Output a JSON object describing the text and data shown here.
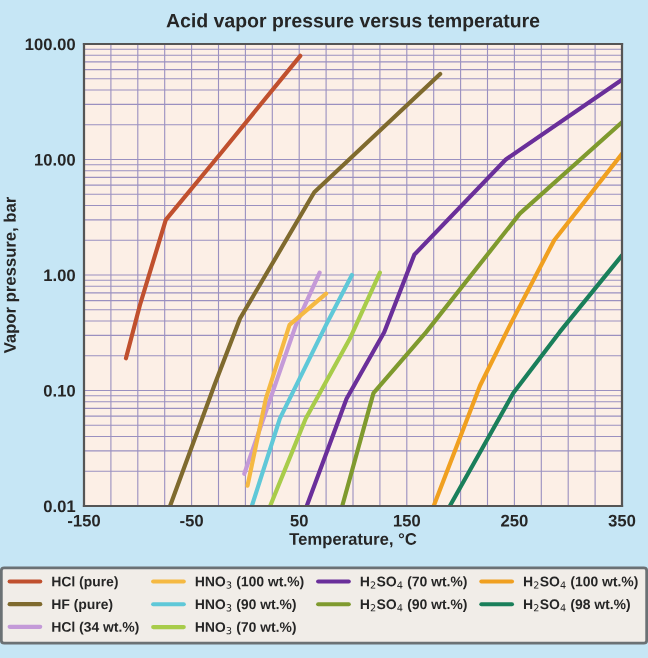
{
  "chart_data": {
    "type": "line",
    "title": "Acid vapor pressure versus temperature",
    "xlabel": "Temperature, °C",
    "ylabel": "Vapor pressure, bar",
    "log": "y",
    "grid": true,
    "legend": "bottom",
    "line_style": "solid",
    "marker": "none",
    "xlim": [
      -150,
      350
    ],
    "xticks": [
      -150,
      {
        "value": -125,
        "label": null
      },
      {
        "value": -100,
        "label": null
      },
      {
        "value": -75,
        "label": null
      },
      -50,
      {
        "value": -25,
        "label": null
      },
      {
        "value": 0,
        "label": null
      },
      {
        "value": 25,
        "label": null
      },
      50,
      {
        "value": 75,
        "label": null
      },
      {
        "value": 100,
        "label": null
      },
      {
        "value": 125,
        "label": null
      },
      150,
      {
        "value": 175,
        "label": null
      },
      {
        "value": 200,
        "label": null
      },
      {
        "value": 225,
        "label": null
      },
      250,
      {
        "value": 275,
        "label": null
      },
      {
        "value": 300,
        "label": null
      },
      {
        "value": 325,
        "label": null
      },
      350
    ],
    "ylim": [
      0.01,
      100
    ],
    "yticks": [
      {
        "value": 0.01,
        "label": "0.01"
      },
      {
        "value": 0.1,
        "label": "0.10"
      },
      {
        "value": 1,
        "label": "1.00"
      },
      {
        "value": 10,
        "label": "10.00"
      },
      {
        "value": 100,
        "label": "100.00"
      }
    ],
    "series": [
      {
        "name": "HCl (pure)",
        "color": "#c0502e",
        "x": [
          -111,
          -98,
          -74,
          -24,
          51
        ],
        "values": [
          0.19,
          0.55,
          3.0,
          11,
          79
        ]
      },
      {
        "name": "HF (pure)",
        "color": "#7f6a2e",
        "x": [
          -70,
          -29,
          -5,
          64,
          181
        ],
        "values": [
          0.01,
          0.11,
          0.42,
          5.2,
          55
        ]
      },
      {
        "name": "HCl (34 wt.%)",
        "color": "#c49ad8",
        "x": [
          -1,
          47,
          69
        ],
        "values": [
          0.019,
          0.37,
          1.05
        ]
      },
      {
        "name": "HNO$_{3}$ (100 wt.%)",
        "color": "#f5b942",
        "x": [
          2,
          19,
          41,
          75
        ],
        "values": [
          0.015,
          0.085,
          0.37,
          0.69
        ]
      },
      {
        "name": "HNO$_{3}$ (90 wt.%)",
        "color": "#5fc8d8",
        "x": [
          6,
          32,
          75,
          99
        ],
        "values": [
          0.01,
          0.057,
          0.37,
          1.0
        ]
      },
      {
        "name": "HNO$_{3}$ (70 wt.%)",
        "color": "#a8cc4a",
        "x": [
          23,
          56,
          97,
          125
        ],
        "values": [
          0.01,
          0.057,
          0.28,
          1.05
        ]
      },
      {
        "name": "H$_{2}$SO$_{4}$ (70 wt.%)",
        "color": "#6a2f9a",
        "x": [
          57,
          94,
          129,
          157,
          242,
          350
        ],
        "values": [
          0.01,
          0.085,
          0.32,
          1.5,
          10,
          49
        ]
      },
      {
        "name": "H$_{2}$SO$_{4}$ (90 wt.%)",
        "color": "#7f9a2e",
        "x": [
          90,
          119,
          168,
          255,
          350
        ],
        "values": [
          0.01,
          0.095,
          0.32,
          3.4,
          21
        ]
      },
      {
        "name": "H$_{2}$SO$_{4}$ (100 wt.%)",
        "color": "#f0a020",
        "x": [
          175,
          218,
          246,
          287,
          350
        ],
        "values": [
          0.01,
          0.11,
          0.37,
          2.0,
          11.2
        ]
      },
      {
        "name": "H$_{2}$SO$_{4}$ (98 wt.%)",
        "color": "#1a7f5a",
        "x": [
          190,
          249,
          292,
          350
        ],
        "values": [
          0.01,
          0.095,
          0.32,
          1.48
        ]
      }
    ]
  }
}
